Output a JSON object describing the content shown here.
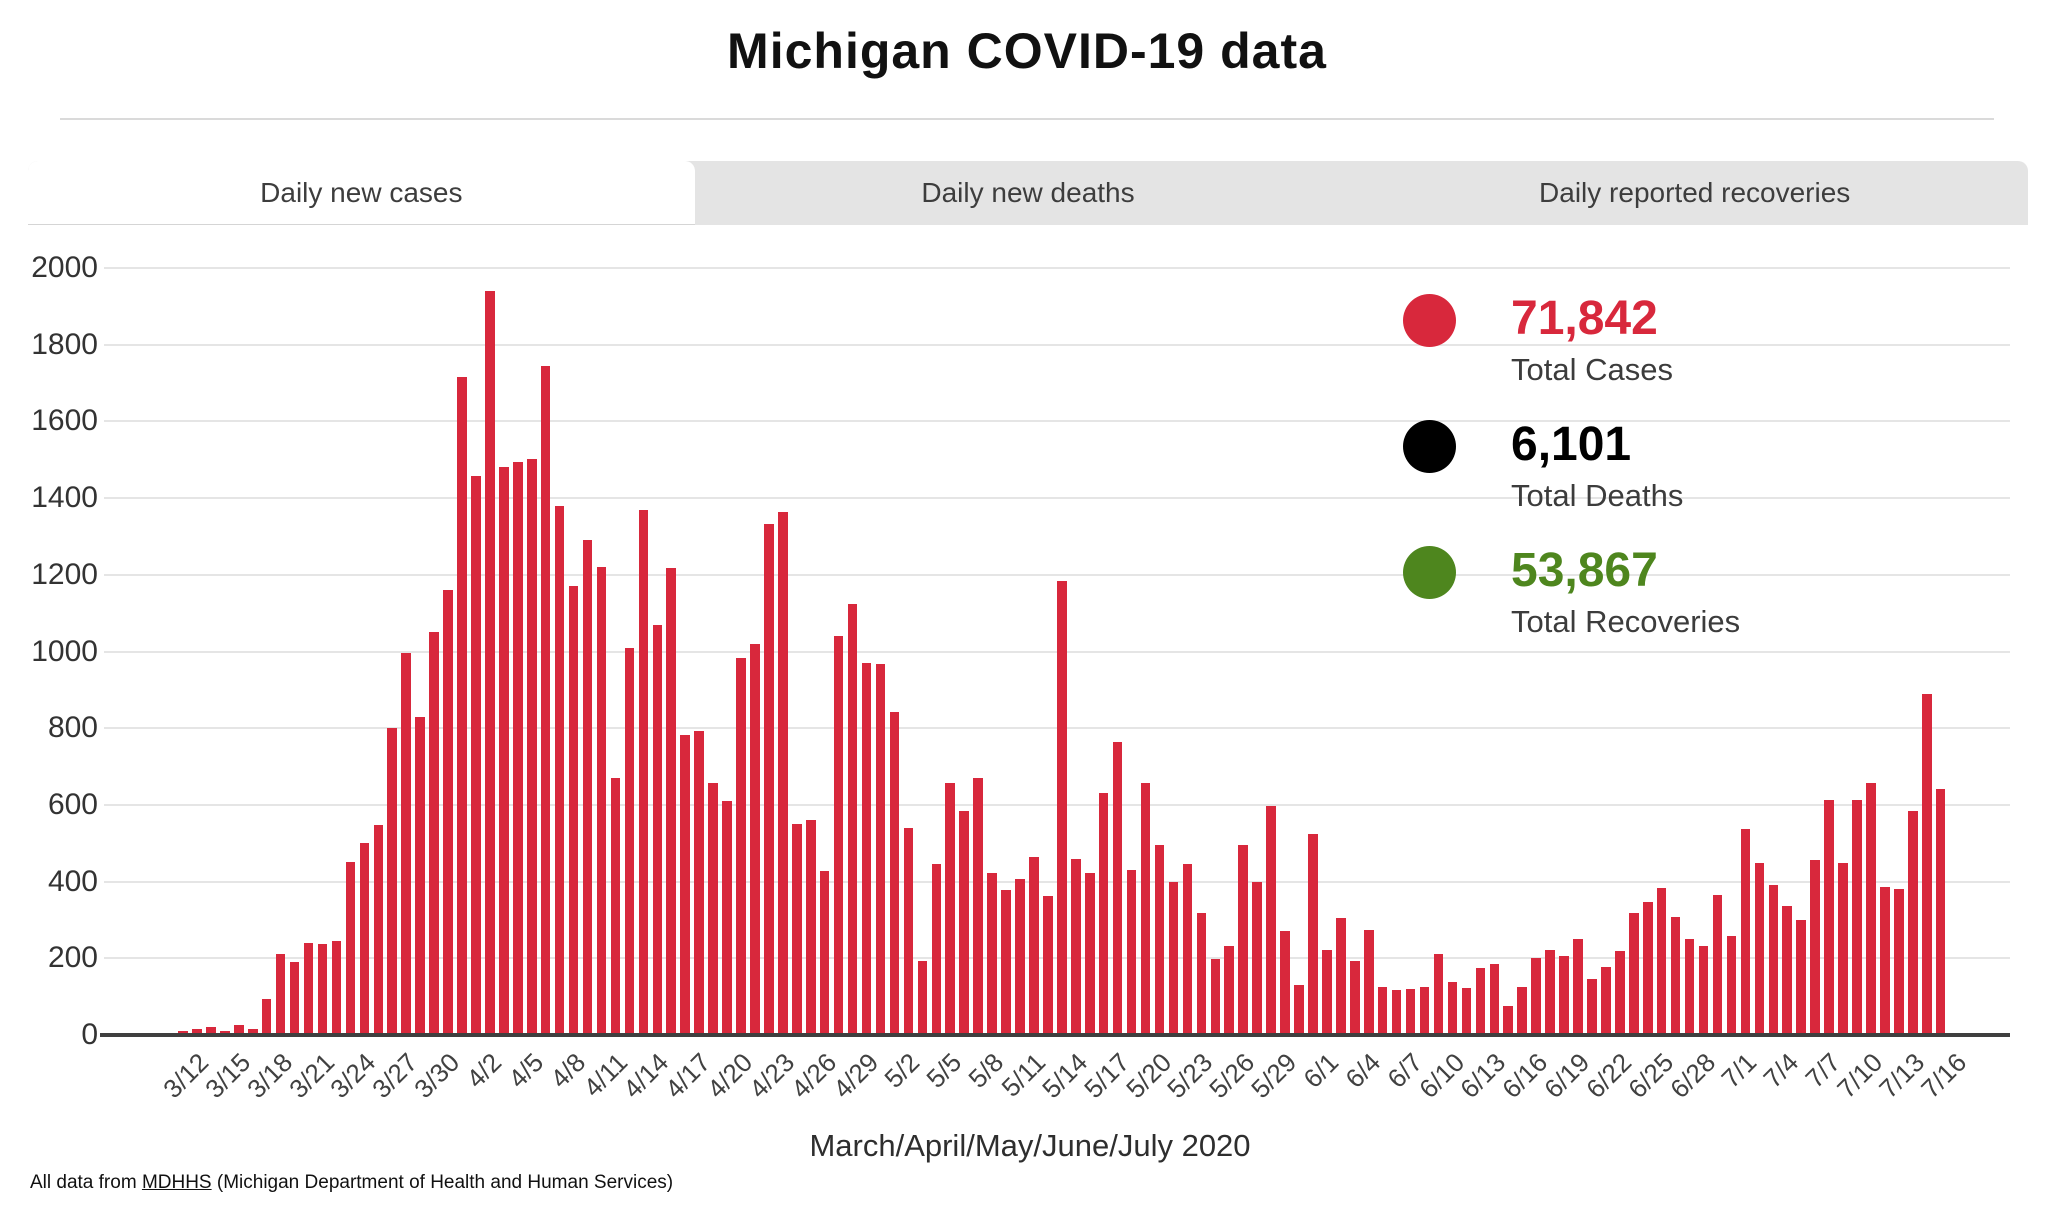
{
  "header": {
    "title": "Michigan COVID-19 data"
  },
  "tabs": [
    {
      "label": "Daily new cases",
      "active": true
    },
    {
      "label": "Daily new deaths",
      "active": false
    },
    {
      "label": "Daily reported recoveries",
      "active": false
    }
  ],
  "legend": {
    "items": [
      {
        "value": "71,842",
        "label": "Total Cases",
        "color": "#d8283c"
      },
      {
        "value": "6,101",
        "label": "Total Deaths",
        "color": "#000000"
      },
      {
        "value": "53,867",
        "label": "Total Recoveries",
        "color": "#4e861e"
      }
    ]
  },
  "footer": {
    "prefix": "All data from ",
    "link_text": "MDHHS",
    "suffix": " (Michigan Department of Health and Human Services)"
  },
  "chart_data": {
    "type": "bar",
    "title": "Michigan COVID-19 data",
    "series_name": "Daily new cases",
    "bar_color": "#d8283c",
    "xlabel": "March/April/May/June/July 2020",
    "ylabel": "",
    "ylim": [
      0,
      2000
    ],
    "y_ticks": [
      0,
      200,
      400,
      600,
      800,
      1000,
      1200,
      1400,
      1600,
      1800,
      2000
    ],
    "grid": true,
    "x_tick_every": 3,
    "dates": [
      "3/12",
      "3/13",
      "3/14",
      "3/15",
      "3/16",
      "3/17",
      "3/18",
      "3/19",
      "3/20",
      "3/21",
      "3/22",
      "3/23",
      "3/24",
      "3/25",
      "3/26",
      "3/27",
      "3/28",
      "3/29",
      "3/30",
      "3/31",
      "4/1",
      "4/2",
      "4/3",
      "4/4",
      "4/5",
      "4/6",
      "4/7",
      "4/8",
      "4/9",
      "4/10",
      "4/11",
      "4/12",
      "4/13",
      "4/14",
      "4/15",
      "4/16",
      "4/17",
      "4/18",
      "4/19",
      "4/20",
      "4/21",
      "4/22",
      "4/23",
      "4/24",
      "4/25",
      "4/26",
      "4/27",
      "4/28",
      "4/29",
      "4/30",
      "5/1",
      "5/2",
      "5/3",
      "5/4",
      "5/5",
      "5/6",
      "5/7",
      "5/8",
      "5/9",
      "5/10",
      "5/11",
      "5/12",
      "5/13",
      "5/14",
      "5/15",
      "5/16",
      "5/17",
      "5/18",
      "5/19",
      "5/20",
      "5/21",
      "5/22",
      "5/23",
      "5/24",
      "5/25",
      "5/26",
      "5/27",
      "5/28",
      "5/29",
      "5/30",
      "5/31",
      "6/1",
      "6/2",
      "6/3",
      "6/4",
      "6/5",
      "6/6",
      "6/7",
      "6/8",
      "6/9",
      "6/10",
      "6/11",
      "6/12",
      "6/13",
      "6/14",
      "6/15",
      "6/16",
      "6/17",
      "6/18",
      "6/19",
      "6/20",
      "6/21",
      "6/22",
      "6/23",
      "6/24",
      "6/25",
      "6/26",
      "6/27",
      "6/28",
      "6/29",
      "6/30",
      "7/1",
      "7/2",
      "7/3",
      "7/4",
      "7/5",
      "7/6",
      "7/7",
      "7/8",
      "7/9",
      "7/10",
      "7/11",
      "7/12",
      "7/13",
      "7/14",
      "7/15",
      "7/16"
    ],
    "values": [
      10,
      16,
      20,
      11,
      25,
      16,
      95,
      210,
      190,
      240,
      236,
      245,
      452,
      500,
      548,
      800,
      995,
      830,
      1050,
      1160,
      1716,
      1457,
      1940,
      1481,
      1493,
      1503,
      1744,
      1380,
      1170,
      1290,
      1220,
      670,
      1010,
      1370,
      1070,
      1217,
      783,
      793,
      656,
      609,
      984,
      1020,
      1333,
      1363,
      550,
      560,
      427,
      1041,
      1123,
      970,
      967,
      842,
      541,
      192,
      445,
      657,
      585,
      671,
      422,
      377,
      407,
      463,
      362,
      1185,
      460,
      422,
      630,
      764,
      430,
      656,
      496,
      400,
      445,
      318,
      199,
      232,
      496,
      400,
      598,
      270,
      131,
      523,
      221,
      304,
      194,
      273,
      125,
      117,
      120,
      126,
      212,
      139,
      123,
      176,
      185,
      75,
      125,
      201,
      222,
      207,
      251,
      145,
      178,
      220,
      319,
      348,
      383,
      308,
      251,
      233,
      366,
      257,
      536,
      449,
      392,
      337,
      300,
      457,
      612,
      448,
      612,
      656,
      387,
      380,
      584,
      890,
      642
    ]
  }
}
